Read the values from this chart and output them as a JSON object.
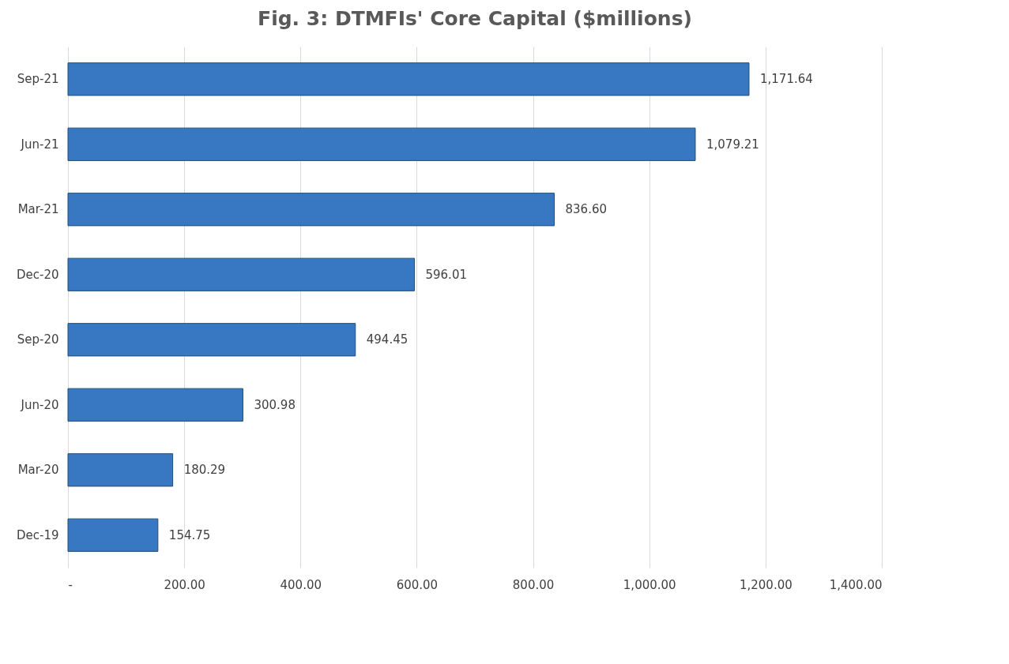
{
  "chart_data": {
    "type": "bar",
    "orientation": "horizontal",
    "title": "Fig. 3: DTMFIs' Core Capital ($millions)",
    "categories": [
      "Sep-21",
      "Jun-21",
      "Mar-21",
      "Dec-20",
      "Sep-20",
      "Jun-20",
      "Mar-20",
      "Dec-19"
    ],
    "values": [
      1171.64,
      1079.21,
      836.6,
      596.01,
      494.45,
      300.98,
      180.29,
      154.75
    ],
    "value_labels": [
      "1,171.64",
      "1,079.21",
      "836.60",
      "596.01",
      "494.45",
      "300.98",
      "180.29",
      "154.75"
    ],
    "color": "#3877c2",
    "xlim": [
      0,
      1400
    ],
    "xticks": [
      {
        "value": 0,
        "label": "-"
      },
      {
        "value": 200,
        "label": "200.00"
      },
      {
        "value": 400,
        "label": "400.00"
      },
      {
        "value": 600,
        "label": "600.00"
      },
      {
        "value": 800,
        "label": "800.00"
      },
      {
        "value": 1000,
        "label": "1,000.00"
      },
      {
        "value": 1200,
        "label": "1,200.00"
      },
      {
        "value": 1400,
        "label": "1,400.00"
      }
    ],
    "grid": "x"
  }
}
